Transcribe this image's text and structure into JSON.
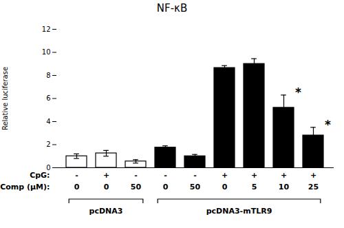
{
  "chart_data": {
    "type": "bar",
    "title": "NF-κB",
    "ylabel": "Relative luciferase",
    "categories": [
      null,
      null,
      null,
      null,
      null,
      null,
      null,
      null,
      null
    ],
    "values": [
      1.0,
      1.25,
      0.55,
      1.75,
      1.0,
      8.65,
      9.0,
      5.2,
      2.8
    ],
    "errors": [
      0.2,
      0.25,
      0.15,
      0.15,
      0.15,
      0.2,
      0.45,
      1.1,
      0.7
    ],
    "colors": [
      "white",
      "white",
      "white",
      "black",
      "black",
      "black",
      "black",
      "black",
      "black"
    ],
    "ylim": [
      0,
      12
    ],
    "yticks": [
      0,
      2,
      4,
      6,
      8,
      10,
      12
    ],
    "grid": false,
    "row_labels": [
      {
        "label": "CpG:",
        "values": [
          "-",
          "+",
          "-",
          "-",
          "-",
          "+",
          "+",
          "+",
          "+"
        ]
      },
      {
        "label": "Comp (μM):",
        "values": [
          "0",
          "0",
          "50",
          "0",
          "50",
          "0",
          "5",
          "10",
          "25"
        ]
      }
    ],
    "groups": [
      {
        "label": "pcDNA3",
        "bars": [
          0,
          2
        ]
      },
      {
        "label": "pcDNA3-mTLR9",
        "bars": [
          3,
          8
        ]
      }
    ],
    "star_bars": [
      7,
      8
    ],
    "star_label": "*"
  }
}
